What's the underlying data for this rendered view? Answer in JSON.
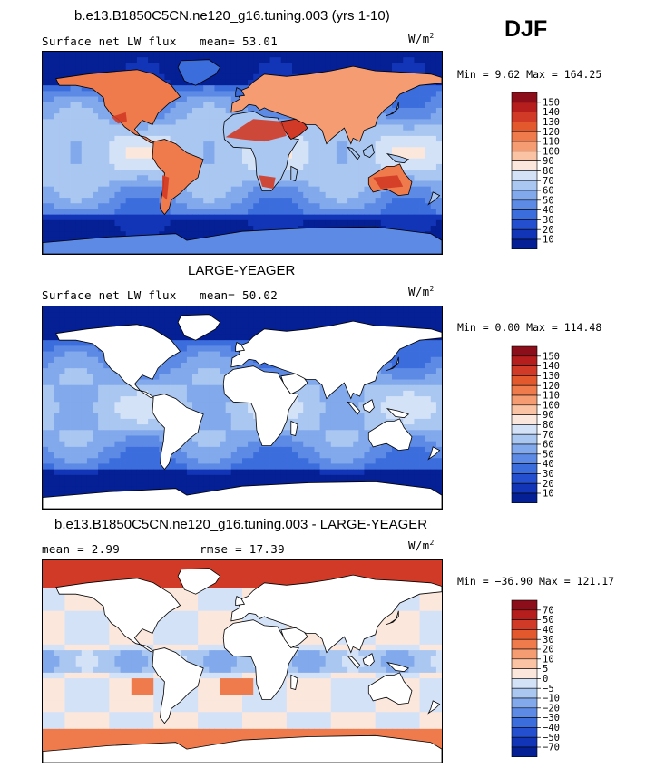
{
  "season": "DJF",
  "panels": [
    {
      "title": "b.e13.B1850C5CN.ne120_g16.tuning.003 (yrs 1-10)",
      "left_text": "Surface net LW flux",
      "center_text": "mean=  53.01",
      "units_base": "W/m",
      "units_exp": "2",
      "minmax": "Min =   9.62 Max = 164.25",
      "colorbar_labels": [
        "150",
        "140",
        "130",
        "120",
        "110",
        "100",
        "90",
        "80",
        "70",
        "60",
        "50",
        "40",
        "30",
        "20",
        "10"
      ]
    },
    {
      "title": "LARGE-YEAGER",
      "left_text": "Surface net LW flux",
      "center_text": "mean=  50.02",
      "units_base": "W/m",
      "units_exp": "2",
      "minmax": "Min =   0.00 Max = 114.48",
      "colorbar_labels": [
        "150",
        "140",
        "130",
        "120",
        "110",
        "100",
        "90",
        "80",
        "70",
        "60",
        "50",
        "40",
        "30",
        "20",
        "10"
      ]
    },
    {
      "title": "b.e13.B1850C5CN.ne120_g16.tuning.003 - LARGE-YEAGER",
      "left_text": "mean =   2.99",
      "center_text": "rmse =  17.39",
      "units_base": "W/m",
      "units_exp": "2",
      "minmax": "Min = −36.90 Max = 121.17",
      "colorbar_labels": [
        "70",
        "50",
        "40",
        "30",
        "20",
        "10",
        "5",
        "0",
        "−5",
        "−10",
        "−20",
        "−30",
        "−40",
        "−50",
        "−70"
      ]
    }
  ],
  "colors": {
    "scale": [
      "#8c0e1a",
      "#b61e1e",
      "#d13a26",
      "#e4582e",
      "#ef7a4c",
      "#f59c72",
      "#fac3a4",
      "#fbe7dc",
      "#d4e2f8",
      "#aac7f1",
      "#82a9ec",
      "#5c8ae5",
      "#3c6ddd",
      "#2450cf",
      "#1234b6",
      "#051f94"
    ],
    "land": "#ffffff",
    "coast": "#000000"
  },
  "chart_data": [
    {
      "type": "heatmap",
      "title": "b.e13.B1850C5CN.ne120_g16.tuning.003 (yrs 1-10)",
      "variable": "Surface net LW flux",
      "units": "W/m2",
      "mean": 53.01,
      "min": 9.62,
      "max": 164.25,
      "levels": [
        10,
        20,
        30,
        40,
        50,
        60,
        70,
        80,
        90,
        100,
        110,
        120,
        130,
        140,
        150
      ]
    },
    {
      "type": "heatmap",
      "title": "LARGE-YEAGER",
      "variable": "Surface net LW flux",
      "units": "W/m2",
      "mean": 50.02,
      "min": 0.0,
      "max": 114.48,
      "levels": [
        10,
        20,
        30,
        40,
        50,
        60,
        70,
        80,
        90,
        100,
        110,
        120,
        130,
        140,
        150
      ]
    },
    {
      "type": "heatmap",
      "title": "b.e13.B1850C5CN.ne120_g16.tuning.003 - LARGE-YEAGER",
      "units": "W/m2",
      "mean": 2.99,
      "rmse": 17.39,
      "min": -36.9,
      "max": 121.17,
      "levels": [
        -70,
        -50,
        -40,
        -30,
        -20,
        -10,
        -5,
        0,
        5,
        10,
        20,
        30,
        40,
        50,
        70
      ]
    }
  ]
}
